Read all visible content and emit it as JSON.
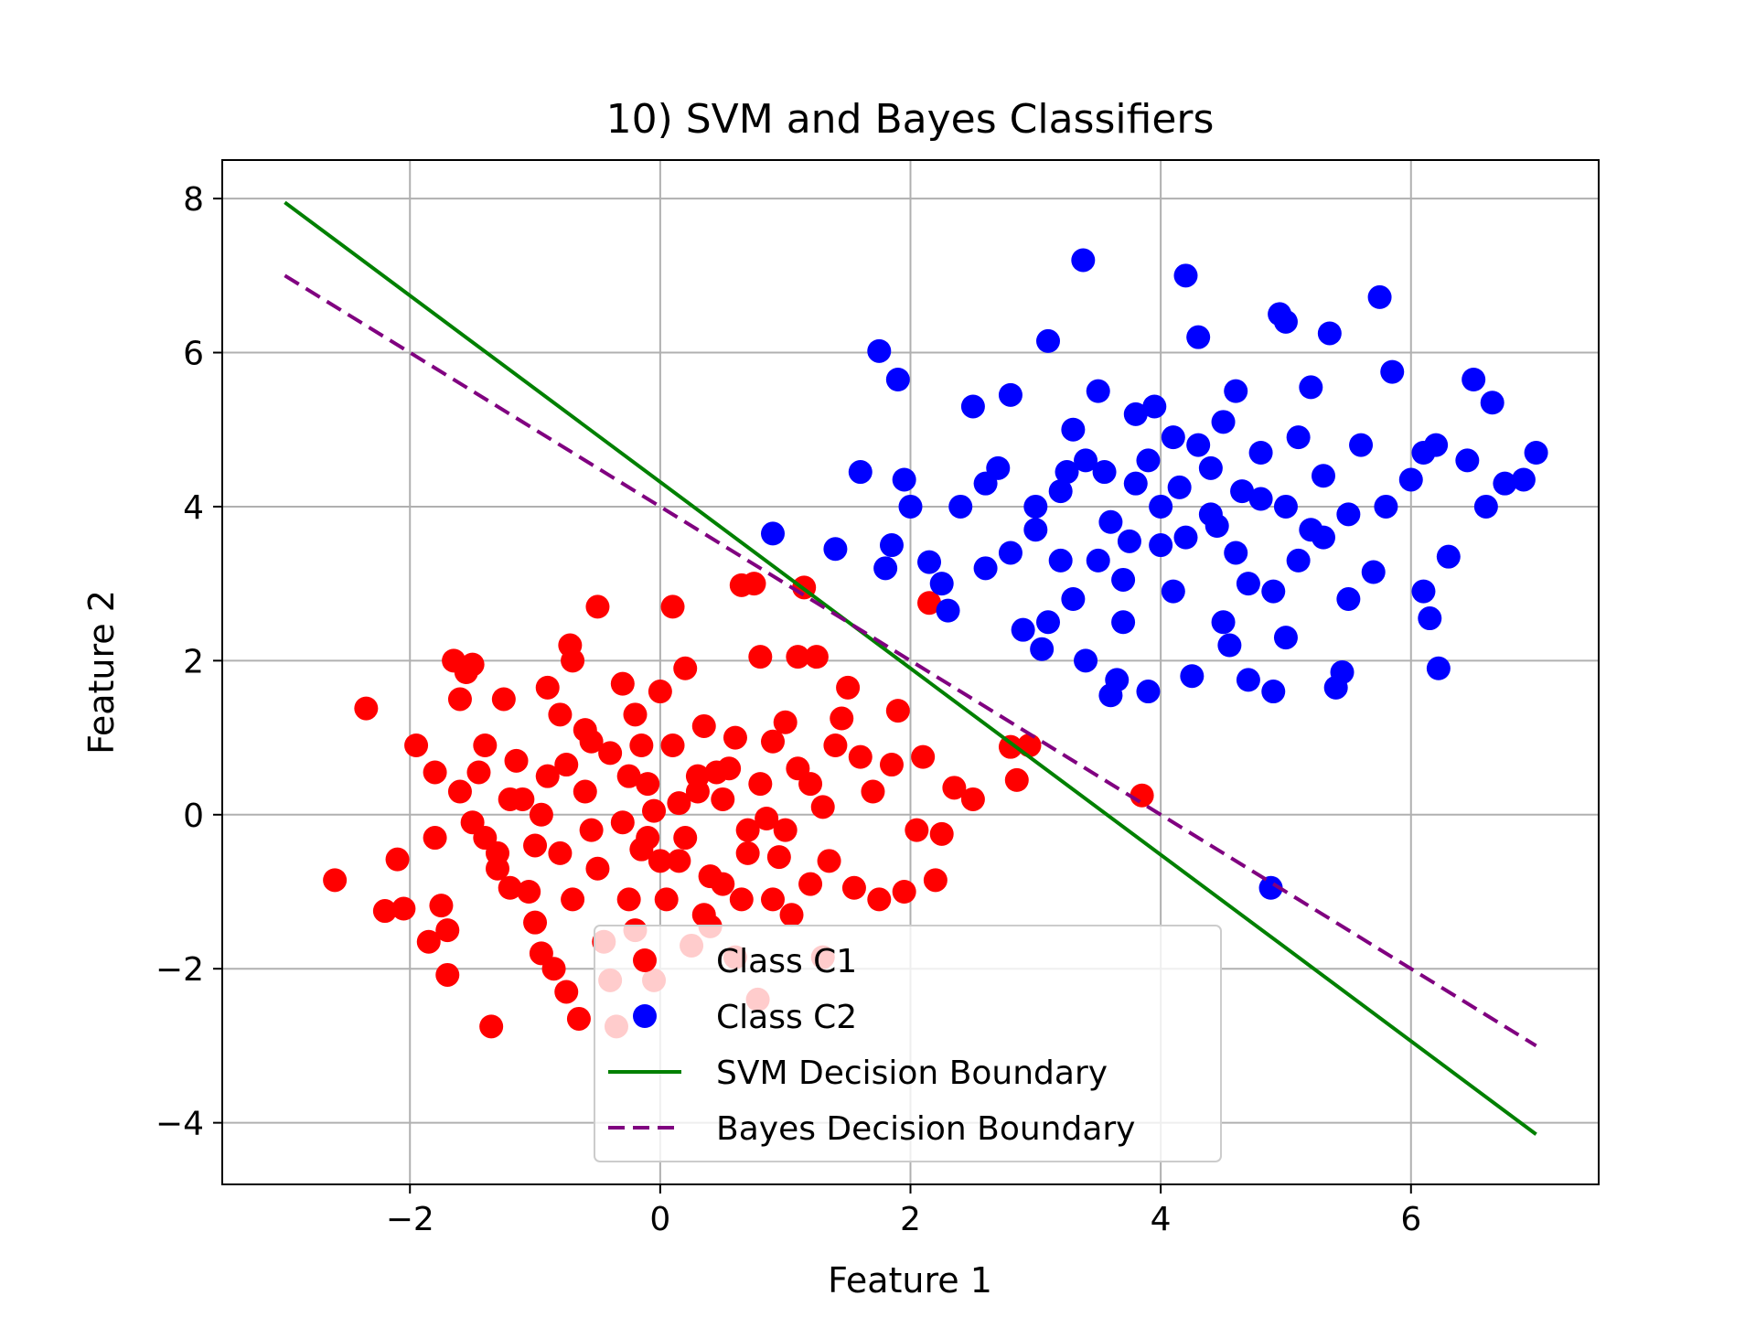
{
  "chart_data": {
    "type": "scatter",
    "title": "10) SVM and Bayes Classifiers",
    "xlabel": "Feature 1",
    "ylabel": "Feature 2",
    "xlim": [
      -3.5,
      7.5
    ],
    "ylim": [
      -4.8,
      8.5
    ],
    "xticks": [
      -2,
      0,
      2,
      4,
      6
    ],
    "yticks": [
      -4,
      -2,
      0,
      2,
      4,
      6,
      8
    ],
    "xtick_labels": [
      "−2",
      "0",
      "2",
      "4",
      "6"
    ],
    "ytick_labels": [
      "−4",
      "−2",
      "0",
      "2",
      "4",
      "6",
      "8"
    ],
    "grid": true,
    "legend_position": "lower-center",
    "colors": {
      "class_c1": "#ff0000",
      "class_c2": "#0000ff",
      "svm": "#008000",
      "bayes": "#800080"
    },
    "series": [
      {
        "name": "Class C1",
        "kind": "scatter",
        "color": "#ff0000",
        "points": [
          [
            -2.6,
            -0.85
          ],
          [
            -2.35,
            1.38
          ],
          [
            -2.2,
            -1.25
          ],
          [
            -2.1,
            -0.58
          ],
          [
            -2.05,
            -1.22
          ],
          [
            -1.95,
            0.9
          ],
          [
            -1.85,
            -1.65
          ],
          [
            -1.8,
            0.55
          ],
          [
            -1.75,
            -1.18
          ],
          [
            -1.7,
            -1.5
          ],
          [
            -1.7,
            -2.08
          ],
          [
            -1.65,
            2.0
          ],
          [
            -1.6,
            1.5
          ],
          [
            -1.55,
            1.85
          ],
          [
            -1.5,
            1.95
          ],
          [
            -1.45,
            0.55
          ],
          [
            -1.4,
            -0.3
          ],
          [
            -1.35,
            -2.75
          ],
          [
            -1.3,
            -0.7
          ],
          [
            -1.25,
            1.5
          ],
          [
            -1.2,
            -0.95
          ],
          [
            -1.15,
            0.7
          ],
          [
            -1.1,
            0.2
          ],
          [
            -1.05,
            -1.0
          ],
          [
            -1.0,
            -1.4
          ],
          [
            -0.95,
            -1.8
          ],
          [
            -0.9,
            1.65
          ],
          [
            -0.85,
            -2.0
          ],
          [
            -0.8,
            -0.5
          ],
          [
            -0.75,
            -2.3
          ],
          [
            -0.72,
            2.2
          ],
          [
            -0.7,
            2.0
          ],
          [
            -0.65,
            -2.65
          ],
          [
            -0.6,
            1.1
          ],
          [
            -0.55,
            -0.2
          ],
          [
            -0.5,
            2.7
          ],
          [
            -0.45,
            -1.65
          ],
          [
            -0.4,
            -2.15
          ],
          [
            -0.35,
            -2.75
          ],
          [
            -0.3,
            1.7
          ],
          [
            -0.25,
            0.5
          ],
          [
            -0.2,
            -1.5
          ],
          [
            -0.15,
            0.9
          ],
          [
            -0.1,
            -0.3
          ],
          [
            -0.05,
            -2.15
          ],
          [
            0.0,
            1.6
          ],
          [
            0.05,
            -1.1
          ],
          [
            0.1,
            2.7
          ],
          [
            0.15,
            -0.6
          ],
          [
            0.2,
            1.9
          ],
          [
            0.25,
            -1.7
          ],
          [
            0.3,
            0.3
          ],
          [
            0.35,
            1.15
          ],
          [
            0.4,
            -1.45
          ],
          [
            0.5,
            -0.9
          ],
          [
            0.55,
            0.6
          ],
          [
            0.6,
            -1.85
          ],
          [
            0.65,
            2.98
          ],
          [
            0.7,
            -0.2
          ],
          [
            0.75,
            3.0
          ],
          [
            0.78,
            -2.4
          ],
          [
            0.8,
            2.05
          ],
          [
            0.9,
            0.95
          ],
          [
            0.95,
            -0.55
          ],
          [
            1.0,
            1.2
          ],
          [
            1.05,
            -1.3
          ],
          [
            1.1,
            2.05
          ],
          [
            1.15,
            2.95
          ],
          [
            1.2,
            0.4
          ],
          [
            1.25,
            2.05
          ],
          [
            1.3,
            -1.85
          ],
          [
            1.35,
            -0.6
          ],
          [
            1.45,
            1.25
          ],
          [
            1.5,
            1.65
          ],
          [
            1.55,
            -0.95
          ],
          [
            1.6,
            0.75
          ],
          [
            1.7,
            0.3
          ],
          [
            1.75,
            -1.1
          ],
          [
            1.85,
            0.65
          ],
          [
            1.9,
            1.35
          ],
          [
            1.95,
            -1.0
          ],
          [
            2.05,
            -0.2
          ],
          [
            2.1,
            0.75
          ],
          [
            2.15,
            2.75
          ],
          [
            2.2,
            -0.85
          ],
          [
            2.25,
            -0.25
          ],
          [
            2.35,
            0.35
          ],
          [
            2.5,
            0.2
          ],
          [
            2.8,
            0.88
          ],
          [
            2.85,
            0.45
          ],
          [
            2.95,
            0.9
          ],
          [
            3.85,
            0.25
          ],
          [
            -1.2,
            0.2
          ],
          [
            -1.0,
            -0.4
          ],
          [
            -0.9,
            0.5
          ],
          [
            -0.8,
            1.3
          ],
          [
            -0.7,
            -1.1
          ],
          [
            -0.6,
            0.3
          ],
          [
            -0.5,
            -0.7
          ],
          [
            -0.4,
            0.8
          ],
          [
            -0.3,
            -0.1
          ],
          [
            -0.2,
            1.3
          ],
          [
            -0.1,
            0.4
          ],
          [
            0.0,
            -0.6
          ],
          [
            0.1,
            0.9
          ],
          [
            0.2,
            -0.3
          ],
          [
            0.3,
            0.5
          ],
          [
            0.4,
            -0.8
          ],
          [
            0.5,
            0.2
          ],
          [
            0.6,
            1.0
          ],
          [
            0.7,
            -0.5
          ],
          [
            0.8,
            0.4
          ],
          [
            0.9,
            -1.1
          ],
          [
            1.0,
            -0.2
          ],
          [
            1.1,
            0.6
          ],
          [
            1.2,
            -0.9
          ],
          [
            1.3,
            0.1
          ],
          [
            1.4,
            0.9
          ],
          [
            -1.5,
            -0.1
          ],
          [
            -1.4,
            0.9
          ],
          [
            -1.3,
            -0.5
          ],
          [
            -1.6,
            0.3
          ],
          [
            -1.8,
            -0.3
          ],
          [
            -0.95,
            0.0
          ],
          [
            -0.25,
            -1.1
          ],
          [
            0.35,
            -1.3
          ],
          [
            0.15,
            0.15
          ],
          [
            -0.05,
            0.05
          ],
          [
            0.45,
            0.55
          ],
          [
            -0.55,
            0.95
          ],
          [
            0.85,
            -0.05
          ],
          [
            -0.15,
            -0.45
          ],
          [
            0.65,
            -1.1
          ],
          [
            -0.75,
            0.65
          ]
        ]
      },
      {
        "name": "Class C2",
        "kind": "scatter",
        "color": "#0000ff",
        "points": [
          [
            0.9,
            3.65
          ],
          [
            1.4,
            3.45
          ],
          [
            1.6,
            4.45
          ],
          [
            1.75,
            6.02
          ],
          [
            1.8,
            3.2
          ],
          [
            1.85,
            3.5
          ],
          [
            1.9,
            5.65
          ],
          [
            1.95,
            4.35
          ],
          [
            2.0,
            4.0
          ],
          [
            2.15,
            3.28
          ],
          [
            2.25,
            3.0
          ],
          [
            2.3,
            2.65
          ],
          [
            2.4,
            4.0
          ],
          [
            2.5,
            5.3
          ],
          [
            2.6,
            3.2
          ],
          [
            2.7,
            4.5
          ],
          [
            2.8,
            5.45
          ],
          [
            2.9,
            2.4
          ],
          [
            3.0,
            3.7
          ],
          [
            3.05,
            2.15
          ],
          [
            3.1,
            6.15
          ],
          [
            3.2,
            4.2
          ],
          [
            3.3,
            2.8
          ],
          [
            3.38,
            7.2
          ],
          [
            3.4,
            2.0
          ],
          [
            3.5,
            5.5
          ],
          [
            3.55,
            4.45
          ],
          [
            3.6,
            1.55
          ],
          [
            3.65,
            1.75
          ],
          [
            3.7,
            3.05
          ],
          [
            3.8,
            5.2
          ],
          [
            3.9,
            1.6
          ],
          [
            4.0,
            3.5
          ],
          [
            4.1,
            4.9
          ],
          [
            4.2,
            7.0
          ],
          [
            4.25,
            1.8
          ],
          [
            4.3,
            6.2
          ],
          [
            4.4,
            3.9
          ],
          [
            4.5,
            2.5
          ],
          [
            4.6,
            5.5
          ],
          [
            4.7,
            1.75
          ],
          [
            4.8,
            4.1
          ],
          [
            4.88,
            -0.95
          ],
          [
            4.9,
            1.6
          ],
          [
            4.95,
            6.5
          ],
          [
            5.0,
            6.4
          ],
          [
            5.1,
            3.3
          ],
          [
            5.2,
            5.55
          ],
          [
            5.3,
            3.6
          ],
          [
            5.35,
            6.25
          ],
          [
            5.4,
            1.65
          ],
          [
            5.45,
            1.85
          ],
          [
            5.5,
            2.8
          ],
          [
            5.6,
            4.8
          ],
          [
            5.7,
            3.15
          ],
          [
            5.75,
            6.72
          ],
          [
            5.85,
            5.75
          ],
          [
            6.0,
            4.35
          ],
          [
            6.1,
            4.7
          ],
          [
            6.1,
            2.9
          ],
          [
            6.15,
            2.55
          ],
          [
            6.2,
            4.8
          ],
          [
            6.22,
            1.9
          ],
          [
            6.3,
            3.35
          ],
          [
            6.45,
            4.6
          ],
          [
            6.5,
            5.65
          ],
          [
            6.6,
            4.0
          ],
          [
            6.65,
            5.35
          ],
          [
            6.75,
            4.3
          ],
          [
            6.9,
            4.35
          ],
          [
            7.0,
            4.7
          ],
          [
            3.0,
            4.0
          ],
          [
            3.2,
            3.3
          ],
          [
            3.4,
            4.6
          ],
          [
            3.6,
            3.8
          ],
          [
            3.8,
            4.3
          ],
          [
            4.0,
            4.0
          ],
          [
            4.2,
            3.6
          ],
          [
            4.4,
            4.5
          ],
          [
            4.6,
            3.4
          ],
          [
            4.8,
            4.7
          ],
          [
            5.0,
            4.0
          ],
          [
            5.2,
            3.7
          ],
          [
            3.3,
            5.0
          ],
          [
            3.7,
            2.5
          ],
          [
            4.1,
            2.9
          ],
          [
            4.5,
            5.1
          ],
          [
            4.9,
            2.9
          ],
          [
            5.3,
            4.4
          ],
          [
            2.8,
            3.4
          ],
          [
            3.5,
            3.3
          ],
          [
            4.3,
            4.8
          ],
          [
            4.7,
            3.0
          ],
          [
            5.1,
            4.9
          ],
          [
            5.5,
            3.9
          ],
          [
            3.9,
            4.6
          ],
          [
            4.15,
            4.25
          ],
          [
            3.75,
            3.55
          ],
          [
            4.45,
            3.75
          ],
          [
            3.25,
            4.45
          ],
          [
            4.65,
            4.2
          ],
          [
            2.6,
            4.3
          ],
          [
            5.8,
            4.0
          ],
          [
            3.1,
            2.5
          ],
          [
            4.55,
            2.2
          ],
          [
            5.0,
            2.3
          ],
          [
            3.95,
            5.3
          ]
        ]
      }
    ],
    "lines": [
      {
        "name": "SVM Decision Boundary",
        "style": "solid",
        "color": "#008000",
        "points": [
          [
            -3.0,
            7.95
          ],
          [
            7.0,
            -4.15
          ]
        ]
      },
      {
        "name": "Bayes Decision Boundary",
        "style": "dashed",
        "color": "#800080",
        "points": [
          [
            -3.0,
            7.0
          ],
          [
            7.0,
            -3.0
          ]
        ]
      }
    ],
    "legend": [
      {
        "label": "Class C1",
        "marker": "dot",
        "color": "#ff0000"
      },
      {
        "label": "Class C2",
        "marker": "dot",
        "color": "#0000ff"
      },
      {
        "label": "SVM Decision Boundary",
        "marker": "line",
        "color": "#008000"
      },
      {
        "label": "Bayes Decision Boundary",
        "marker": "dash",
        "color": "#800080"
      }
    ]
  }
}
